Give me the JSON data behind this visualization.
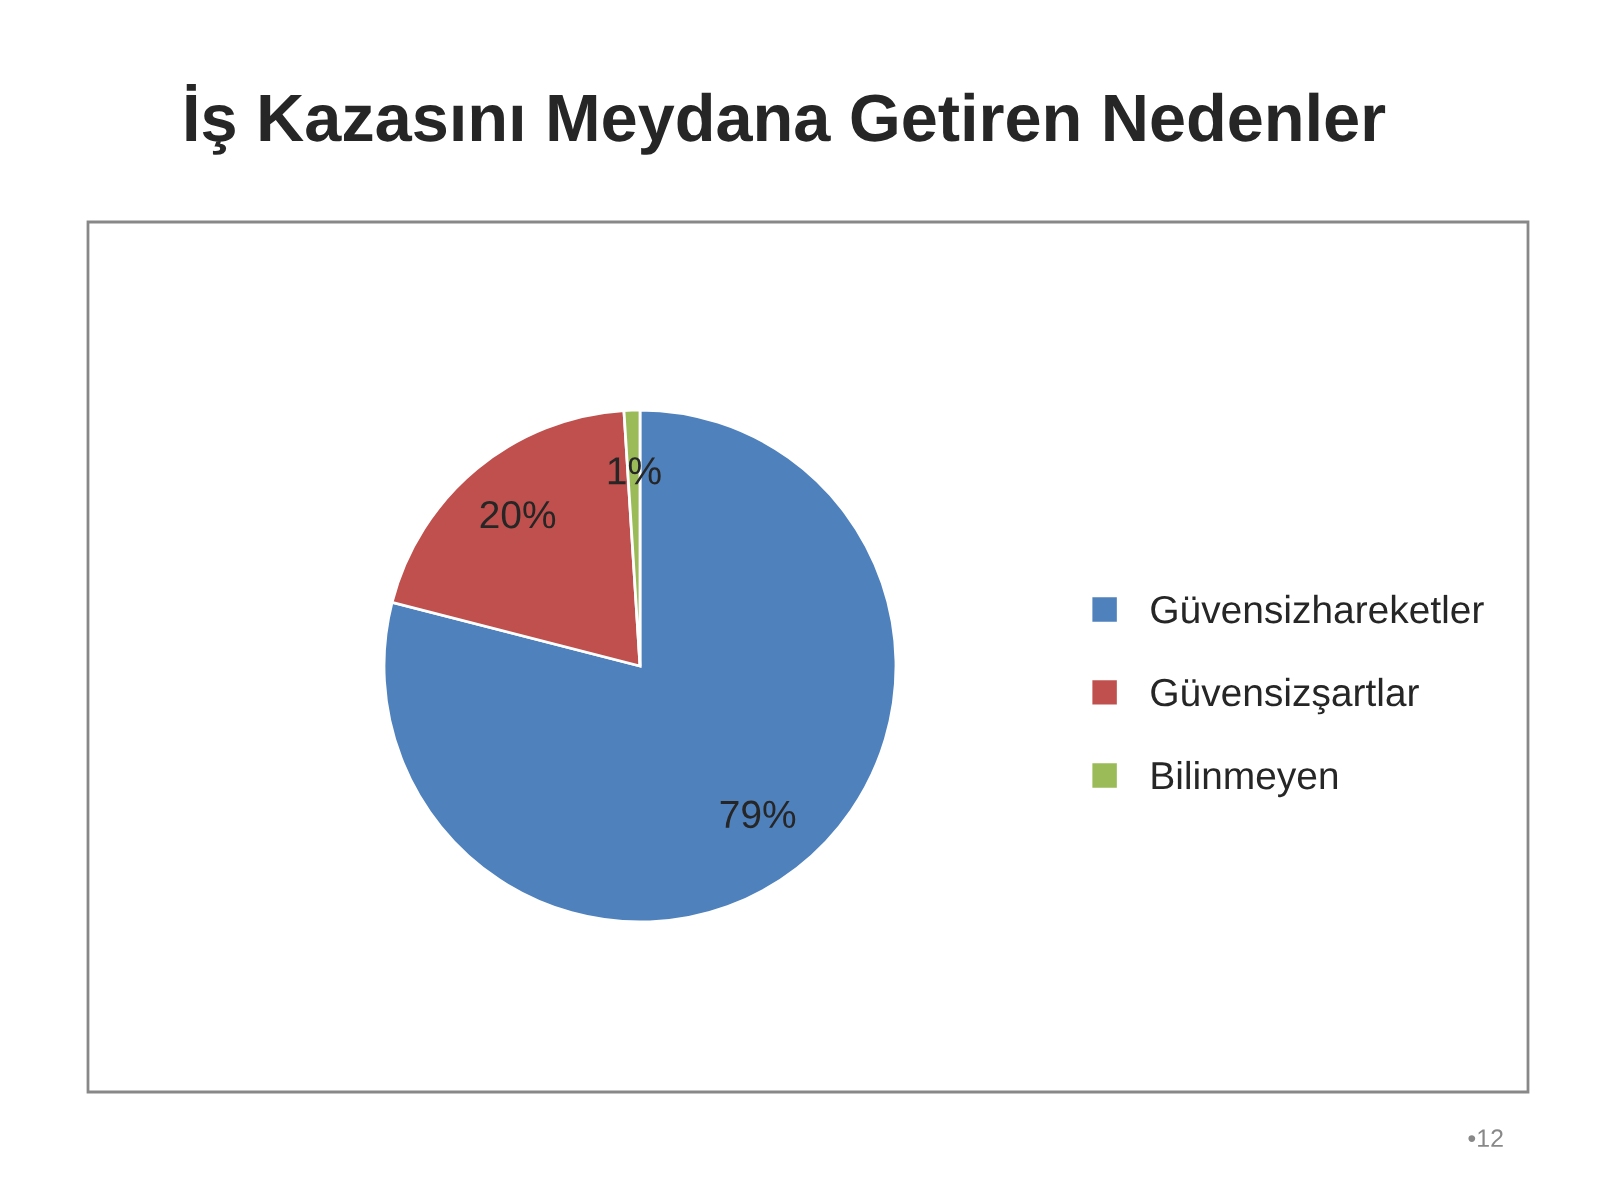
{
  "chart_data": {
    "type": "pie",
    "title": "İş Kazasını Meydana Getiren Nedenler",
    "categories": [
      "Güvensizhareketler",
      "Güvensizşartlar",
      "Bilinmeyen"
    ],
    "values": [
      79,
      20,
      1
    ],
    "colors": [
      "#4f81bd",
      "#c0504d",
      "#9bbb59"
    ],
    "value_labels": [
      "79%",
      "20%",
      "1%"
    ],
    "legend": "right",
    "annotations": [
      "•12"
    ]
  }
}
